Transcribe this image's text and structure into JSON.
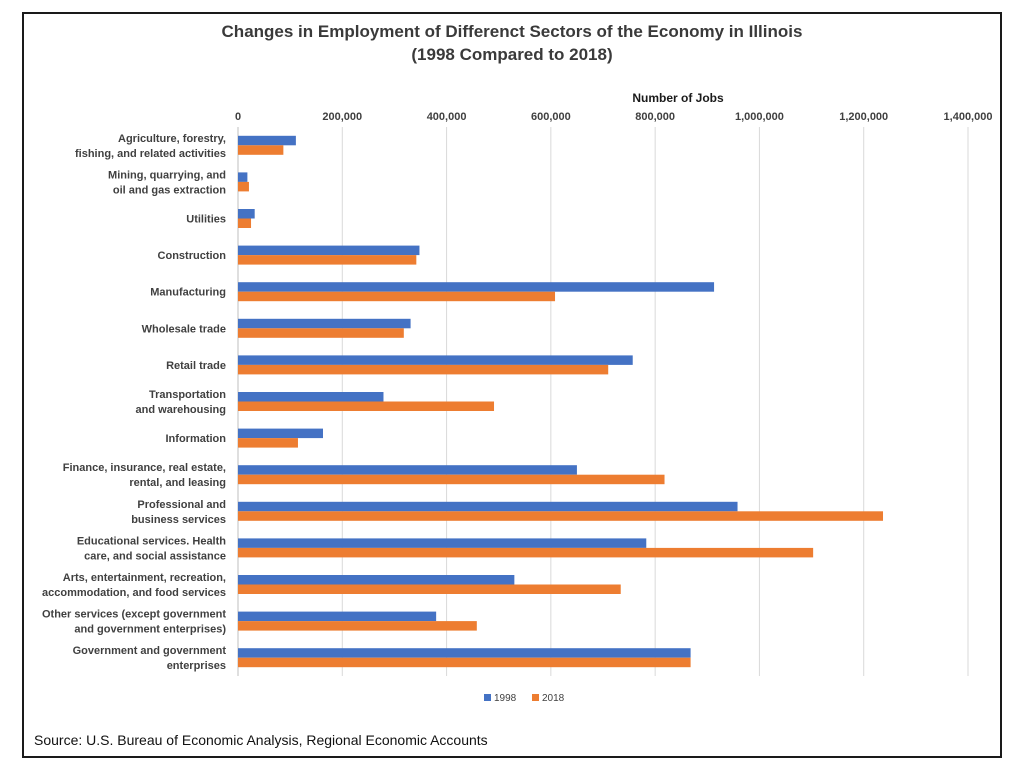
{
  "chart_data": {
    "type": "bar",
    "orientation": "horizontal",
    "title_lines": [
      "Changes in Employment of Differenct Sectors of the Economy in Illinois",
      "(1998 Compared to 2018)"
    ],
    "xlabel": "Number of Jobs",
    "xlim": [
      0,
      1400000
    ],
    "ticks": [
      0,
      200000,
      400000,
      600000,
      800000,
      1000000,
      1200000,
      1400000
    ],
    "tick_labels": [
      "0",
      "200,000",
      "400,000",
      "600,000",
      "800,000",
      "1,000,000",
      "1,200,000",
      "1,400,000"
    ],
    "grid": true,
    "legend_position": "bottom",
    "categories": [
      [
        "Agriculture, forestry,",
        "fishing, and related activities"
      ],
      [
        "Mining, quarrying, and",
        "oil and gas extraction"
      ],
      [
        "Utilities"
      ],
      [
        "Construction"
      ],
      [
        "Manufacturing"
      ],
      [
        "Wholesale trade"
      ],
      [
        "Retail trade"
      ],
      [
        "Transportation",
        "and warehousing"
      ],
      [
        "Information"
      ],
      [
        "Finance, insurance, real estate,",
        "rental, and leasing"
      ],
      [
        "Professional and",
        "business services"
      ],
      [
        "Educational services. Health",
        "care, and social assistance"
      ],
      [
        "Arts, entertainment, recreation,",
        "accommodation, and food services"
      ],
      [
        "Other services (except government",
        "and government enterprises)"
      ],
      [
        "Government and government",
        "enterprises"
      ]
    ],
    "series": [
      {
        "name": "1998",
        "color": "#4472c4",
        "values": [
          111000,
          18000,
          32000,
          348000,
          913000,
          331000,
          757000,
          279000,
          163000,
          650000,
          958000,
          783000,
          530000,
          380000,
          868000
        ]
      },
      {
        "name": "2018",
        "color": "#ed7d31",
        "values": [
          87000,
          21000,
          25000,
          342000,
          608000,
          318000,
          710000,
          491000,
          115000,
          818000,
          1237000,
          1103000,
          734000,
          458000,
          868000
        ]
      }
    ]
  },
  "source": "Source: U.S. Bureau of Economic Analysis, Regional Economic Accounts"
}
